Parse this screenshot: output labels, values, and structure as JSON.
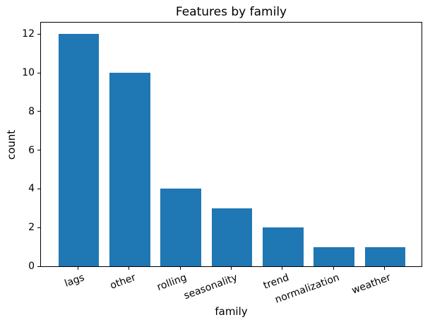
{
  "chart_data": {
    "type": "bar",
    "title": "Features by family",
    "xlabel": "family",
    "ylabel": "count",
    "categories": [
      "lags",
      "other",
      "rolling",
      "seasonality",
      "trend",
      "normalization",
      "weather"
    ],
    "values": [
      12,
      10,
      4,
      3,
      2,
      1,
      1
    ],
    "yticks": [
      0,
      2,
      4,
      6,
      8,
      10,
      12
    ],
    "ylim": [
      0,
      12.6
    ],
    "bar_color": "#1f77b4",
    "axis_color": "#000000",
    "text_color": "#000000",
    "xtick_rotation_deg": 20,
    "grid": false,
    "legend": "none",
    "bar_width_fraction": 0.8
  }
}
